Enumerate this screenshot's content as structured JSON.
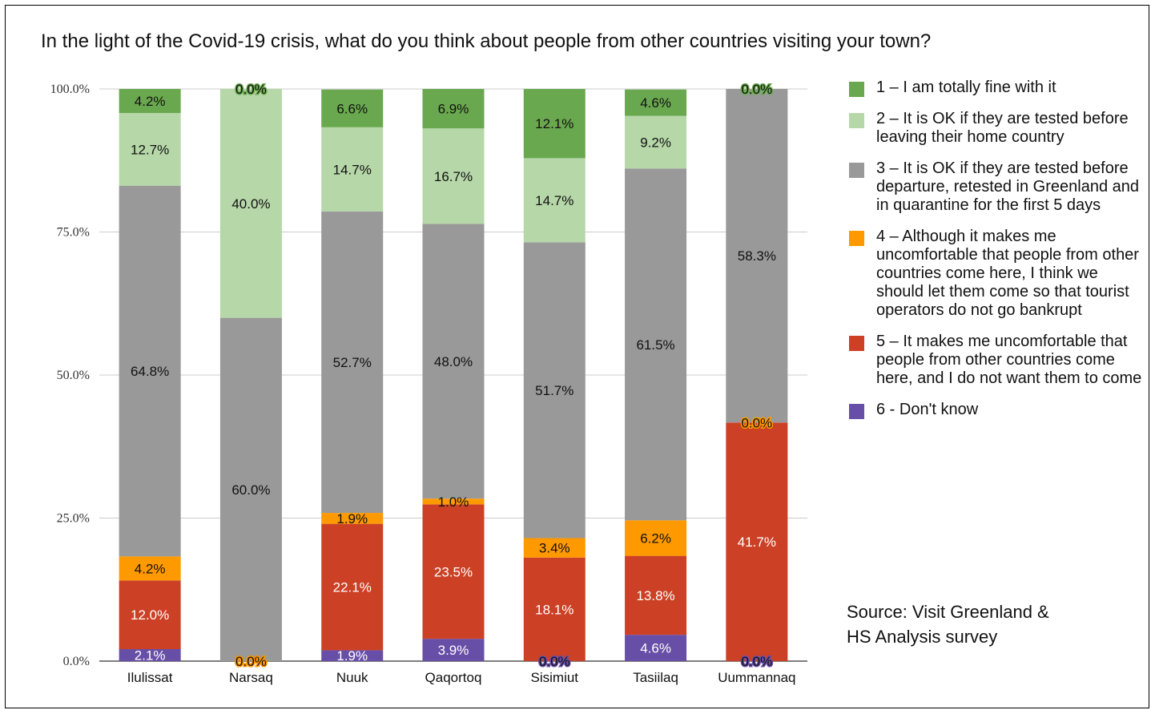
{
  "title": "In the light of the Covid-19 crisis, what do you think about people from other countries visiting your town?",
  "source_line1": "Source: Visit Greenland &",
  "source_line2": "HS Analysis survey",
  "colors": {
    "s1": "#6aa84f",
    "s2": "#b6d7a8",
    "s3": "#999999",
    "s4": "#ff9900",
    "s5": "#cc4125",
    "s6": "#674ea7"
  },
  "chart_data": {
    "type": "bar",
    "stacked": true,
    "title": "In the light of the Covid-19 crisis, what do you think about people from other countries visiting your town?",
    "categories": [
      "Ilulissat",
      "Narsaq",
      "Nuuk",
      "Qaqortoq",
      "Sisimiut",
      "Tasiilaq",
      "Uummannaq"
    ],
    "ylim": [
      0,
      100
    ],
    "yticks": [
      "0.0%",
      "25.0%",
      "50.0%",
      "75.0%",
      "100.0%"
    ],
    "grid": true,
    "legend_position": "right",
    "series": [
      {
        "name": "6 - Don't know",
        "color": "#674ea7",
        "values": [
          2.1,
          0.0,
          1.9,
          3.9,
          0.0,
          4.6,
          0.0
        ]
      },
      {
        "name": "5 – It makes me uncomfortable that people from other countries come here, and I do not want them to come",
        "color": "#cc4125",
        "values": [
          12.0,
          0.0,
          22.1,
          23.5,
          18.1,
          13.8,
          41.7
        ]
      },
      {
        "name": "4 – Although it makes me uncomfortable that people from other countries come here, I think we should let them come so that tourist operators do not go bankrupt",
        "color": "#ff9900",
        "values": [
          4.2,
          0.0,
          1.9,
          1.0,
          3.4,
          6.2,
          0.0
        ]
      },
      {
        "name": "3 – It is OK if they are tested before departure, retested in Greenland and in quarantine for the first 5 days",
        "color": "#999999",
        "values": [
          64.8,
          60.0,
          52.7,
          48.0,
          51.7,
          61.5,
          58.3
        ]
      },
      {
        "name": "2 – It is OK if they are tested before leaving their home country",
        "color": "#b6d7a8",
        "values": [
          12.7,
          40.0,
          14.7,
          16.7,
          14.7,
          9.2,
          0.0
        ]
      },
      {
        "name": "1 – I am totally fine with it",
        "color": "#6aa84f",
        "values": [
          4.2,
          0.0,
          6.6,
          6.9,
          12.1,
          4.6,
          0.0
        ]
      }
    ],
    "data_labels": [
      [
        "2.1%",
        "0.0%",
        "1.9%",
        "3.9%",
        "0.0%",
        "4.6%",
        "0.0%"
      ],
      [
        "12.0%",
        "0.0%",
        "22.1%",
        "23.5%",
        "18.1%",
        "13.8%",
        "41.7%"
      ],
      [
        "4.2%",
        "0.0%",
        "1.9%",
        "1.0%",
        "3.4%",
        "6.2%",
        "0.0%"
      ],
      [
        "64.8%",
        "60.0%",
        "52.7%",
        "48.0%",
        "51.7%",
        "61.5%",
        "58.3%"
      ],
      [
        "12.7%",
        "40.0%",
        "14.7%",
        "16.7%",
        "14.7%",
        "9.2%",
        "0.0%"
      ],
      [
        "4.2%",
        "0.0%",
        "6.6%",
        "6.9%",
        "12.1%",
        "4.6%",
        "0.0%"
      ]
    ]
  },
  "legend": [
    {
      "color": "#6aa84f",
      "label": "1 – I am totally fine with it"
    },
    {
      "color": "#b6d7a8",
      "label": "2 – It is OK if they are tested before leaving their home country"
    },
    {
      "color": "#999999",
      "label": "3 – It is OK if they are tested before departure, retested in Greenland and in quarantine for the first 5 days"
    },
    {
      "color": "#ff9900",
      "label": "4 – Although it makes me uncomfortable that people from other countries come here, I think we should let them come so that tourist operators do not go bankrupt"
    },
    {
      "color": "#cc4125",
      "label": "5 – It makes me uncomfortable that people from other countries come here, and I do not want them to come"
    },
    {
      "color": "#674ea7",
      "label": "6 - Don't know"
    }
  ]
}
